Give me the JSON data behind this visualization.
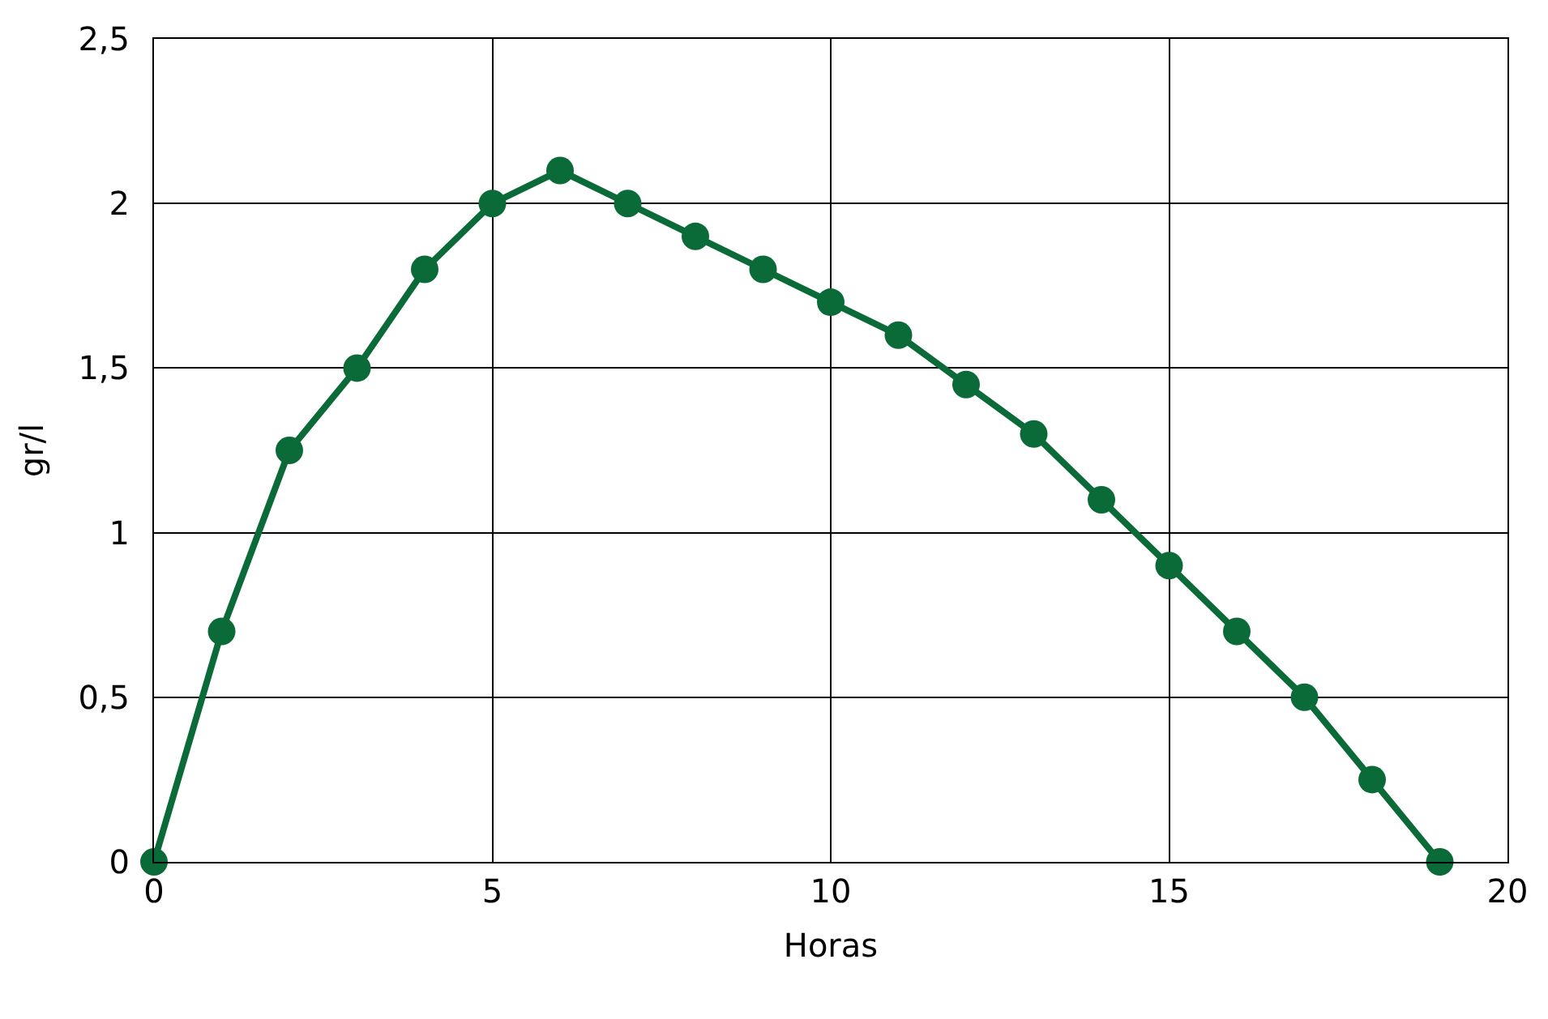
{
  "chart_data": {
    "type": "line",
    "xlabel": "Horas",
    "ylabel": "gr/l",
    "x": [
      0,
      1,
      2,
      3,
      4,
      5,
      6,
      7,
      8,
      9,
      10,
      11,
      12,
      13,
      14,
      15,
      16,
      17,
      18,
      19
    ],
    "series": [
      {
        "color": "#0b6b38",
        "values": [
          0,
          0.7,
          1.25,
          1.5,
          1.8,
          2.0,
          2.1,
          2.0,
          1.9,
          1.8,
          1.7,
          1.6,
          1.45,
          1.3,
          1.1,
          0.9,
          0.7,
          0.5,
          0.25,
          0
        ]
      }
    ],
    "xlim": [
      0,
      20
    ],
    "xticks": [
      0,
      5,
      10,
      15,
      20
    ],
    "ylim": [
      0,
      2.5
    ],
    "yticks": [
      0,
      {
        "value": 0.5,
        "label": "0,5"
      },
      1,
      {
        "value": 1.5,
        "label": "1,5"
      },
      2,
      {
        "value": 2.5,
        "label": "2,5"
      }
    ],
    "grid": true,
    "legend": false,
    "marker": "circle",
    "line_style": "solid"
  }
}
